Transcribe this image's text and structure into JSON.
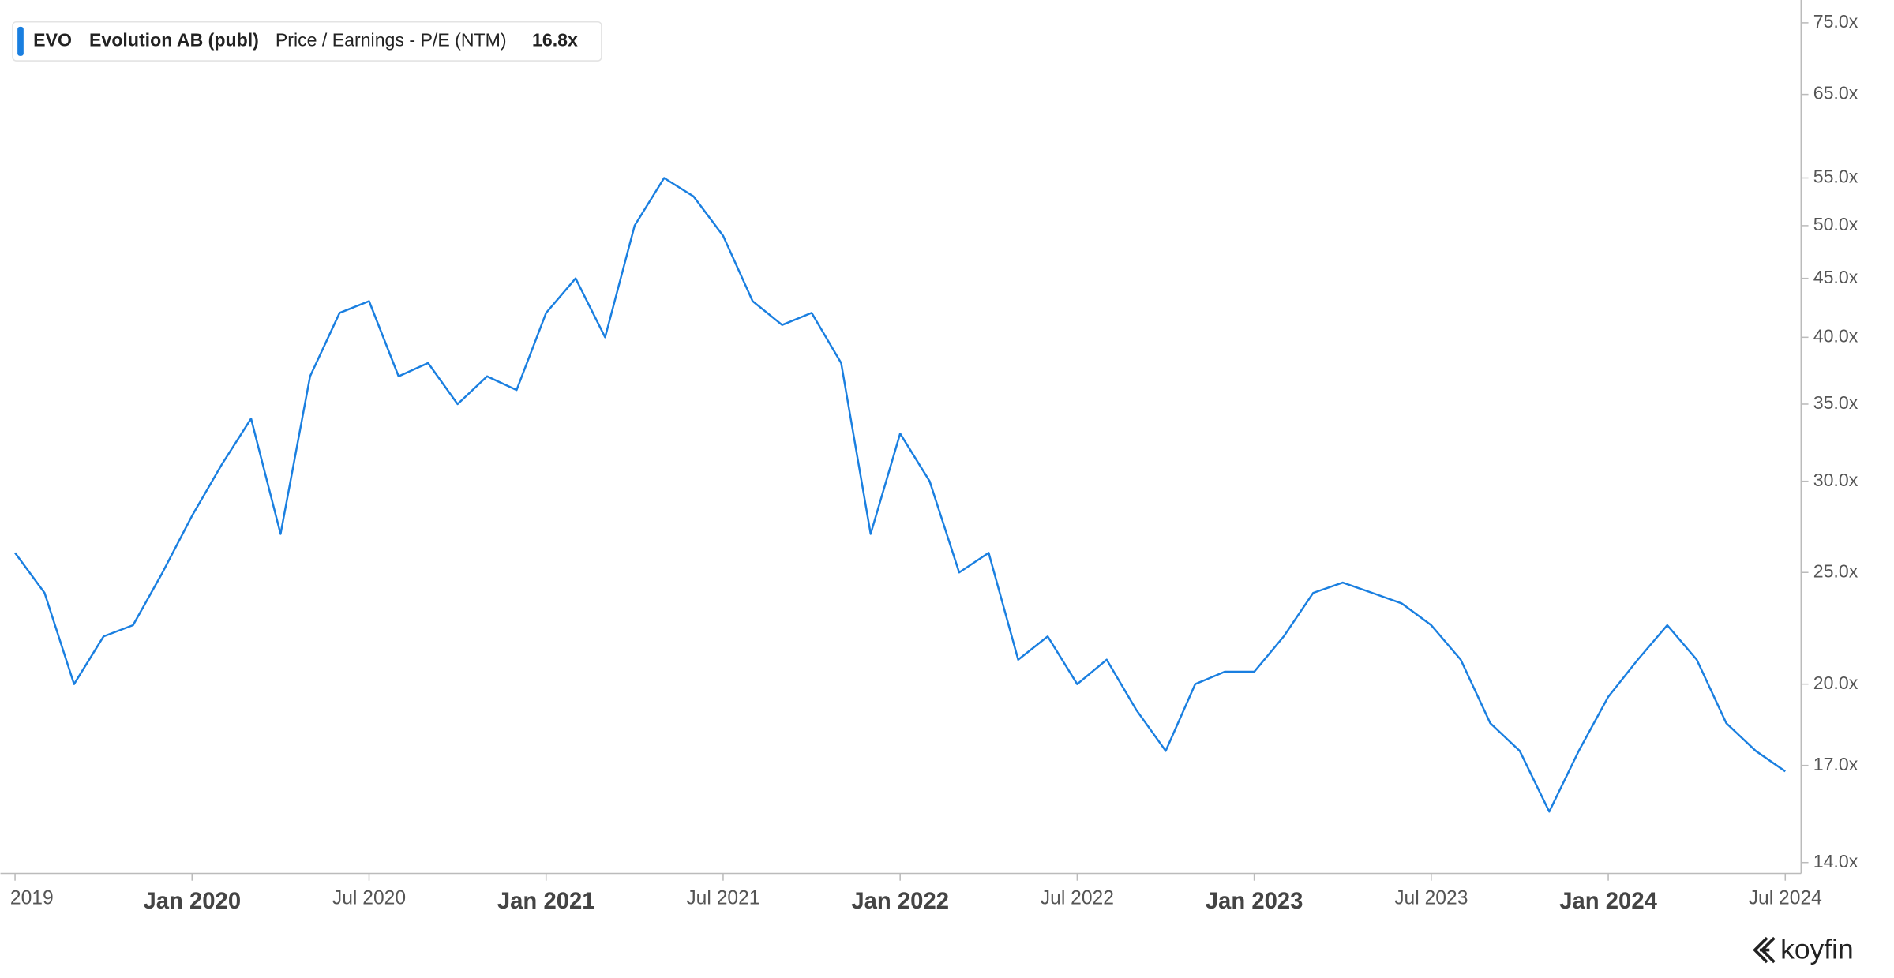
{
  "chart_data": {
    "type": "line",
    "header": {
      "ticker": "EVO",
      "name": "Evolution AB (publ)",
      "metric": "Price / Earnings - P/E (NTM)",
      "last": "16.8x"
    },
    "brand": "koyfin",
    "x": [
      "2019-07",
      "2019-08",
      "2019-09",
      "2019-10",
      "2019-11",
      "2019-12",
      "2020-01",
      "2020-02",
      "2020-03",
      "2020-04",
      "2020-05",
      "2020-06",
      "2020-07",
      "2020-08",
      "2020-09",
      "2020-10",
      "2020-11",
      "2020-12",
      "2021-01",
      "2021-02",
      "2021-03",
      "2021-04",
      "2021-05",
      "2021-06",
      "2021-07",
      "2021-08",
      "2021-09",
      "2021-10",
      "2021-11",
      "2021-12",
      "2022-01",
      "2022-02",
      "2022-03",
      "2022-04",
      "2022-05",
      "2022-06",
      "2022-07",
      "2022-08",
      "2022-09",
      "2022-10",
      "2022-11",
      "2022-12",
      "2023-01",
      "2023-02",
      "2023-03",
      "2023-04",
      "2023-05",
      "2023-06",
      "2023-07",
      "2023-08",
      "2023-09",
      "2023-10",
      "2023-11",
      "2023-12",
      "2024-01",
      "2024-02",
      "2024-03",
      "2024-04",
      "2024-05",
      "2024-06",
      "2024-07"
    ],
    "series": [
      {
        "name": "Price / Earnings - P/E (NTM)",
        "color": "#1a7fe0",
        "values": [
          26,
          24,
          20,
          22,
          22.5,
          25,
          28,
          31,
          34,
          27,
          37,
          42,
          43,
          37,
          38,
          35,
          37,
          36,
          42,
          45,
          40,
          50,
          55,
          53,
          49,
          43,
          41,
          42,
          38,
          27,
          33,
          30,
          25,
          26,
          21,
          22,
          20,
          21,
          19,
          17.5,
          20,
          20.5,
          20.5,
          22,
          24,
          24.5,
          24,
          23.5,
          22.5,
          21,
          18.5,
          17.5,
          15.5,
          17.5,
          19.5,
          21,
          22.5,
          21,
          18.5,
          17.5,
          16.8
        ]
      }
    ],
    "log_y": true,
    "ylim": [
      13.7,
      78.5
    ],
    "yticks": [
      {
        "value": 14,
        "label": "14.0x"
      },
      {
        "value": 17,
        "label": "17.0x"
      },
      {
        "value": 20,
        "label": "20.0x"
      },
      {
        "value": 25,
        "label": "25.0x"
      },
      {
        "value": 30,
        "label": "30.0x"
      },
      {
        "value": 35,
        "label": "35.0x"
      },
      {
        "value": 40,
        "label": "40.0x"
      },
      {
        "value": 45,
        "label": "45.0x"
      },
      {
        "value": 50,
        "label": "50.0x"
      },
      {
        "value": 55,
        "label": "55.0x"
      },
      {
        "value": 65,
        "label": "65.0x"
      },
      {
        "value": 75,
        "label": "75.0x"
      }
    ],
    "xlim": [
      "2019-07",
      "2024-07"
    ],
    "xticks": [
      {
        "value": "2019-07",
        "label": "2019"
      },
      {
        "value": "2020-01",
        "label": "Jan 2020"
      },
      {
        "value": "2020-07",
        "label": "Jul 2020"
      },
      {
        "value": "2021-01",
        "label": "Jan 2021"
      },
      {
        "value": "2021-07",
        "label": "Jul 2021"
      },
      {
        "value": "2022-01",
        "label": "Jan 2022"
      },
      {
        "value": "2022-07",
        "label": "Jul 2022"
      },
      {
        "value": "2023-01",
        "label": "Jan 2023"
      },
      {
        "value": "2023-07",
        "label": "Jul 2023"
      },
      {
        "value": "2024-01",
        "label": "Jan 2024"
      },
      {
        "value": "2024-07",
        "label": "Jul 2024"
      }
    ]
  }
}
